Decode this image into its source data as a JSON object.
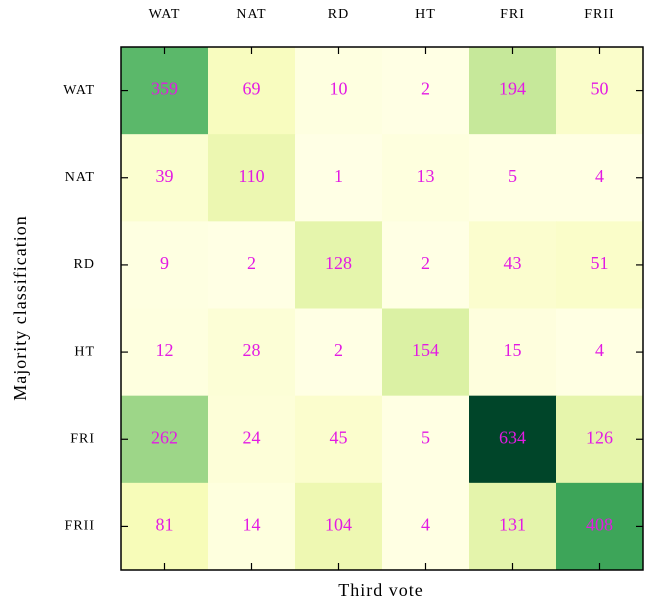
{
  "chart_data": {
    "type": "heatmap",
    "x_label": "Third vote",
    "y_label": "Majority classification",
    "x_categories": [
      "WAT",
      "NAT",
      "RD",
      "HT",
      "FRI",
      "FRII"
    ],
    "y_categories": [
      "WAT",
      "NAT",
      "RD",
      "HT",
      "FRI",
      "FRII"
    ],
    "values": [
      [
        359,
        69,
        10,
        2,
        194,
        50
      ],
      [
        39,
        110,
        1,
        13,
        5,
        4
      ],
      [
        9,
        2,
        128,
        2,
        43,
        51
      ],
      [
        12,
        28,
        2,
        154,
        15,
        4
      ],
      [
        262,
        24,
        45,
        5,
        634,
        126
      ],
      [
        81,
        14,
        104,
        4,
        131,
        408
      ]
    ],
    "colormap": [
      "#ffffe5",
      "#f7fcb9",
      "#d9f0a3",
      "#addd8e",
      "#78c679",
      "#41ab5d",
      "#238443",
      "#006837",
      "#004529"
    ],
    "label_color": "#e31ae3"
  }
}
